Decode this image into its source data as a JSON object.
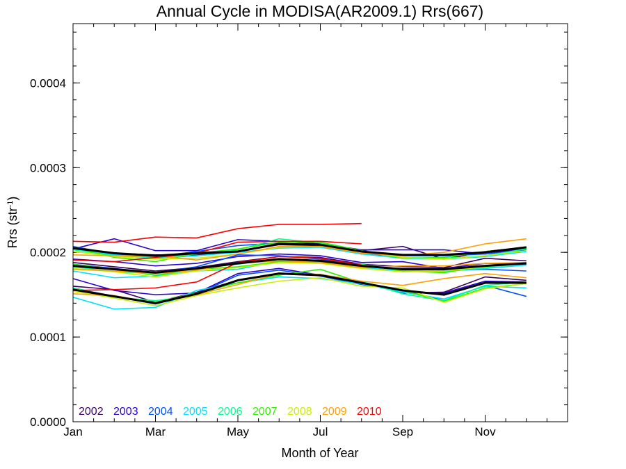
{
  "chart_data": {
    "type": "line",
    "title": "Annual Cycle in MODISA(AR2009.1) Rrs(667)",
    "xlabel": "Month of Year",
    "ylabel_main": "Rrs (str",
    "ylabel_exp": "-1",
    "ylabel_close": ")",
    "xlim": [
      1,
      13
    ],
    "ylim": [
      0.0,
      0.00047
    ],
    "xticks": [
      {
        "value": 1,
        "label": "Jan"
      },
      {
        "value": 3,
        "label": "Mar"
      },
      {
        "value": 5,
        "label": "May"
      },
      {
        "value": 7,
        "label": "Jul"
      },
      {
        "value": 9,
        "label": "Sep"
      },
      {
        "value": 11,
        "label": "Nov"
      }
    ],
    "yticks": [
      {
        "value": 0.0,
        "label": "0.0000"
      },
      {
        "value": 0.0001,
        "label": "0.0001"
      },
      {
        "value": 0.0002,
        "label": "0.0002"
      },
      {
        "value": 0.0003,
        "label": "0.0003"
      },
      {
        "value": 0.0004,
        "label": "0.0004"
      }
    ],
    "months": [
      1,
      2,
      3,
      4,
      5,
      6,
      7,
      8,
      9,
      10,
      11,
      12
    ],
    "legend": [
      {
        "name": "2002",
        "color": "#3c0060"
      },
      {
        "name": "2003",
        "color": "#2a00d0"
      },
      {
        "name": "2004",
        "color": "#0050ff"
      },
      {
        "name": "2005",
        "color": "#00e0ff"
      },
      {
        "name": "2006",
        "color": "#00ff90"
      },
      {
        "name": "2007",
        "color": "#30f000"
      },
      {
        "name": "2008",
        "color": "#c8f000"
      },
      {
        "name": "2009",
        "color": "#ffa000"
      },
      {
        "name": "2010",
        "color": "#ff0000"
      }
    ],
    "series": [
      {
        "group": "upper",
        "color": "#3c0060",
        "values": [
          0.000205,
          0.000199,
          0.000197,
          0.000197,
          0.000201,
          0.000209,
          0.000208,
          0.000202,
          0.000207,
          0.000192,
          0.000201,
          0.000206
        ]
      },
      {
        "group": "upper",
        "color": "#2a00d0",
        "values": [
          0.000204,
          0.000216,
          0.000202,
          0.000202,
          0.000215,
          0.000213,
          0.00021,
          0.000203,
          0.000203,
          0.000203,
          0.000198,
          0.000205
        ]
      },
      {
        "group": "upper",
        "color": "#0050ff",
        "values": [
          0.000207,
          0.000198,
          0.000195,
          0.000201,
          0.000208,
          0.000211,
          0.000208,
          0.000198,
          0.000196,
          0.000196,
          0.000198,
          0.000203
        ]
      },
      {
        "group": "upper",
        "color": "#00e0ff",
        "values": [
          0.000204,
          0.000197,
          0.000193,
          0.000196,
          0.0002,
          0.000205,
          0.000206,
          0.000198,
          0.000193,
          0.000192,
          0.000195,
          0.000201
        ]
      },
      {
        "group": "upper",
        "color": "#00ff90",
        "values": [
          0.000203,
          0.000196,
          0.000194,
          0.000198,
          0.000203,
          0.000216,
          0.000211,
          0.000201,
          0.000194,
          0.000193,
          0.000196,
          0.000204
        ]
      },
      {
        "group": "upper",
        "color": "#30f000",
        "values": [
          0.000206,
          0.000194,
          0.000189,
          0.000199,
          0.000204,
          0.000212,
          0.000212,
          0.000202,
          0.000193,
          0.000194,
          0.000201,
          0.000205
        ]
      },
      {
        "group": "upper",
        "color": "#c8f000",
        "values": [
          0.000201,
          0.000195,
          0.000192,
          0.000193,
          0.000198,
          0.000206,
          0.000207,
          0.000201,
          0.000194,
          0.000192,
          0.000196,
          0.000202
        ]
      },
      {
        "group": "upper",
        "color": "#ffa000",
        "values": [
          0.000197,
          0.000196,
          0.000196,
          0.000191,
          0.000198,
          0.000207,
          0.000207,
          0.000199,
          0.000196,
          0.0002,
          0.00021,
          0.000216
        ]
      },
      {
        "group": "upper",
        "color": "#ff0000",
        "values": [
          0.000213,
          0.000212,
          0.000218,
          0.000217,
          0.000228,
          0.000233,
          0.000233,
          0.000234
        ]
      },
      {
        "group": "mean",
        "color": "#000000",
        "values": [
          0.000205,
          0.000199,
          0.000196,
          0.000199,
          0.000201,
          0.00021,
          0.000209,
          0.000201,
          0.000197,
          0.000197,
          0.0002,
          0.000206
        ]
      },
      {
        "group": "middle",
        "color": "#3c0060",
        "values": [
          0.000188,
          0.000183,
          0.000178,
          0.000182,
          0.000189,
          0.000195,
          0.000194,
          0.000186,
          0.000183,
          0.000182,
          0.000193,
          0.00019
        ]
      },
      {
        "group": "middle",
        "color": "#2a00d0",
        "values": [
          0.000192,
          0.000189,
          0.000184,
          0.000187,
          0.000195,
          0.000198,
          0.000196,
          0.000188,
          0.000189,
          0.000181,
          0.000187,
          0.000186
        ]
      },
      {
        "group": "middle",
        "color": "#0050ff",
        "values": [
          0.000186,
          0.000181,
          0.000176,
          0.000183,
          0.000197,
          0.000196,
          0.000192,
          0.000184,
          0.00018,
          0.000179,
          0.00018,
          0.000178
        ]
      },
      {
        "group": "middle",
        "color": "#00e0ff",
        "values": [
          0.000178,
          0.00017,
          0.000172,
          0.000178,
          0.00018,
          0.00019,
          0.000189,
          0.000182,
          0.000178,
          0.000178,
          0.000181,
          0.000185
        ]
      },
      {
        "group": "middle",
        "color": "#00ff90",
        "values": [
          0.000183,
          0.000177,
          0.000175,
          0.000181,
          0.000186,
          0.000192,
          0.00019,
          0.000184,
          0.000179,
          0.000177,
          0.000182,
          0.000187
        ]
      },
      {
        "group": "middle",
        "color": "#30f000",
        "values": [
          0.000186,
          0.00018,
          0.000173,
          0.00018,
          0.000183,
          0.000189,
          0.000188,
          0.000186,
          0.000178,
          0.000176,
          0.000184,
          0.000188
        ]
      },
      {
        "group": "middle",
        "color": "#c8f000",
        "values": [
          0.000181,
          0.000177,
          0.000171,
          0.000178,
          0.000182,
          0.000188,
          0.000187,
          0.000181,
          0.000177,
          0.000178,
          0.000183,
          0.000187
        ]
      },
      {
        "group": "middle",
        "color": "#ffa000",
        "values": [
          0.00018,
          0.000178,
          0.000175,
          0.000179,
          0.000187,
          0.00019,
          0.000188,
          0.000182,
          0.000184,
          0.000184,
          0.000187,
          0.000188
        ]
      },
      {
        "group": "middle",
        "color": "#ff0000",
        "values": [
          0.000191,
          0.000189,
          0.000194,
          0.000199,
          0.000212,
          0.000213,
          0.000213,
          0.00021
        ]
      },
      {
        "group": "mean",
        "color": "#000000",
        "values": [
          0.000184,
          0.00018,
          0.000176,
          0.000181,
          0.000187,
          0.000192,
          0.00019,
          0.000184,
          0.00018,
          0.00018,
          0.000184,
          0.000187
        ]
      },
      {
        "group": "lower",
        "color": "#3c0060",
        "values": [
          0.00016,
          0.000156,
          0.000141,
          0.000153,
          0.000167,
          0.000175,
          0.000173,
          0.000165,
          0.000152,
          0.000153,
          0.000171,
          0.000167
        ]
      },
      {
        "group": "lower",
        "color": "#2a00d0",
        "values": [
          0.000169,
          0.000155,
          0.00015,
          0.000152,
          0.000175,
          0.000181,
          0.000173,
          0.000165,
          0.000152,
          0.000152,
          0.000166,
          0.000165
        ]
      },
      {
        "group": "lower",
        "color": "#0050ff",
        "values": [
          0.000158,
          0.000148,
          0.000139,
          0.000151,
          0.000173,
          0.000179,
          0.000172,
          0.000162,
          0.000155,
          0.000143,
          0.000161,
          0.000148
        ]
      },
      {
        "group": "lower",
        "color": "#00e0ff",
        "values": [
          0.000147,
          0.000133,
          0.000135,
          0.000155,
          0.000164,
          0.000171,
          0.000169,
          0.000163,
          0.000153,
          0.000145,
          0.00016,
          0.000158
        ]
      },
      {
        "group": "lower",
        "color": "#00ff90",
        "values": [
          0.000158,
          0.000147,
          0.000143,
          0.000149,
          0.000167,
          0.000175,
          0.000174,
          0.000166,
          0.000151,
          0.000143,
          0.000161,
          0.000165
        ]
      },
      {
        "group": "lower",
        "color": "#30f000",
        "values": [
          0.000157,
          0.000148,
          0.000141,
          0.000152,
          0.000164,
          0.000173,
          0.00018,
          0.000164,
          0.000155,
          0.000142,
          0.000158,
          0.000163
        ]
      },
      {
        "group": "lower",
        "color": "#c8f000",
        "values": [
          0.000154,
          0.000146,
          0.000137,
          0.000149,
          0.000158,
          0.000166,
          0.00017,
          0.00016,
          0.000158,
          0.000141,
          0.000157,
          0.000163
        ]
      },
      {
        "group": "lower",
        "color": "#ffa000",
        "values": [
          0.000151,
          0.000149,
          0.00014,
          0.00015,
          0.000162,
          0.000175,
          0.000174,
          0.000166,
          0.000161,
          0.000169,
          0.000175,
          0.00017
        ]
      },
      {
        "group": "lower",
        "color": "#ff0000",
        "values": [
          0.000155,
          0.000156,
          0.000158,
          0.000165,
          0.000188,
          0.000195,
          0.000193,
          0.000185
        ]
      },
      {
        "group": "mean",
        "color": "#000000",
        "values": [
          0.000156,
          0.000148,
          0.00014,
          0.000151,
          0.000167,
          0.000175,
          0.000173,
          0.000164,
          0.000155,
          0.00015,
          0.000164,
          0.000164
        ]
      }
    ]
  }
}
